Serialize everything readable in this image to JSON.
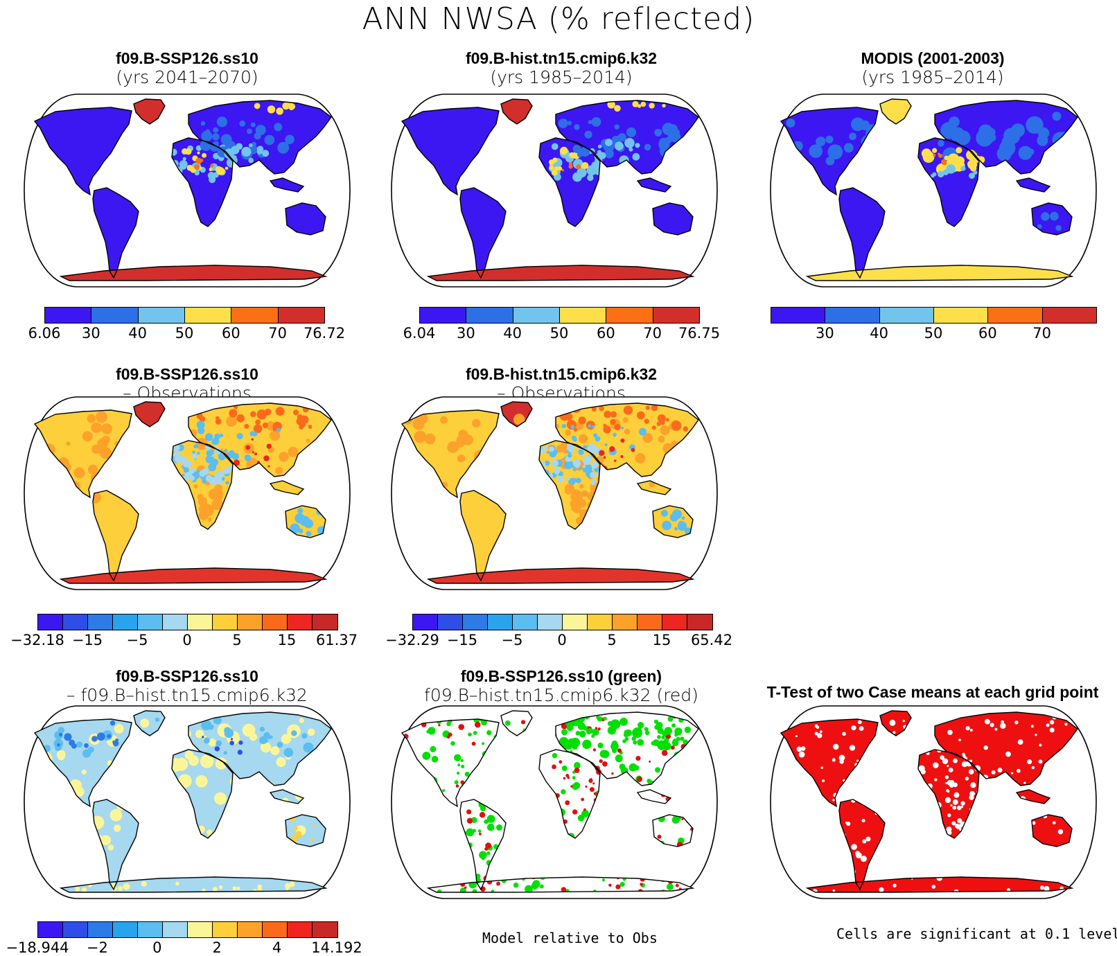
{
  "title": "ANN NWSA (% reflected)",
  "panels": [
    {
      "line1": "f09.B-SSP126.ss10",
      "line2": "(yrs 2041–2070)",
      "style": "abs"
    },
    {
      "line1": "f09.B-hist.tn15.cmip6.k32",
      "line2": "(yrs 1985–2014)",
      "style": "abs"
    },
    {
      "line1": "MODIS (2001-2003)",
      "line2": "(yrs 1985–2014)",
      "style": "obs"
    },
    {
      "line1": "f09.B-SSP126.ss10",
      "line2": "– Observations",
      "style": "diff"
    },
    {
      "line1": "f09.B-hist.tn15.cmip6.k32",
      "line2": "– Observations",
      "style": "diff"
    },
    {
      "line1": "f09.B-SSP126.ss10",
      "line2": "– f09.B–hist.tn15.cmip6.k32",
      "style": "cdiff"
    },
    {
      "line1": "f09.B-SSP126.ss10 (green)",
      "line2": "f09.B–hist.tn15.cmip6.k32 (red)",
      "style": "rel"
    },
    {
      "line1": "T-Test of two Case means at each grid point",
      "line2": "",
      "style": "ttest"
    }
  ],
  "colorbars": [
    {
      "colors": [
        "#3c17f2",
        "#2d6fe6",
        "#72c4ec",
        "#fde049",
        "#fc6f14",
        "#d22f2c"
      ],
      "labels": [
        "6.06",
        "30",
        "40",
        "50",
        "60",
        "70",
        "76.72"
      ]
    },
    {
      "colors": [
        "#3c17f2",
        "#2d6fe6",
        "#72c4ec",
        "#fde049",
        "#fc6f14",
        "#d22f2c"
      ],
      "labels": [
        "6.04",
        "30",
        "40",
        "50",
        "60",
        "70",
        "76.75"
      ]
    },
    {
      "colors": [
        "#3c17f2",
        "#2d6fe6",
        "#72c4ec",
        "#fde049",
        "#fc6f14",
        "#d22f2c"
      ],
      "labels": [
        "",
        "30",
        "40",
        "50",
        "60",
        "70",
        ""
      ]
    },
    {
      "colors": [
        "#3c17f2",
        "#2f4ee8",
        "#2e7ae6",
        "#29a4ec",
        "#5bbdf0",
        "#a6d8ef",
        "#fbf59a",
        "#fdcf3a",
        "#fca22b",
        "#fb6a1b",
        "#ee2520",
        "#c82828"
      ],
      "labels": [
        "−32.18",
        "−15",
        "−5",
        "0",
        "5",
        "15",
        "61.37"
      ]
    },
    {
      "colors": [
        "#3c17f2",
        "#2f4ee8",
        "#2e7ae6",
        "#29a4ec",
        "#5bbdf0",
        "#a6d8ef",
        "#fbf59a",
        "#fdcf3a",
        "#fca22b",
        "#fb6a1b",
        "#ee2520",
        "#c82828"
      ],
      "labels": [
        "−32.29",
        "−15",
        "−5",
        "0",
        "5",
        "15",
        "65.42"
      ]
    },
    {
      "colors": [
        "#3c17f2",
        "#2f4ee8",
        "#2e7ae6",
        "#29a4ec",
        "#5bbdf0",
        "#a6d8ef",
        "#fbf59a",
        "#fdcf3a",
        "#fca22b",
        "#fb6a1b",
        "#ee2520",
        "#c82828"
      ],
      "labels": [
        "−18.944",
        "−2",
        "0",
        "2",
        "4",
        "14.192"
      ]
    }
  ],
  "notes": {
    "relative": "Model relative to Obs",
    "significance": "Cells are significant at 0.1 level"
  }
}
